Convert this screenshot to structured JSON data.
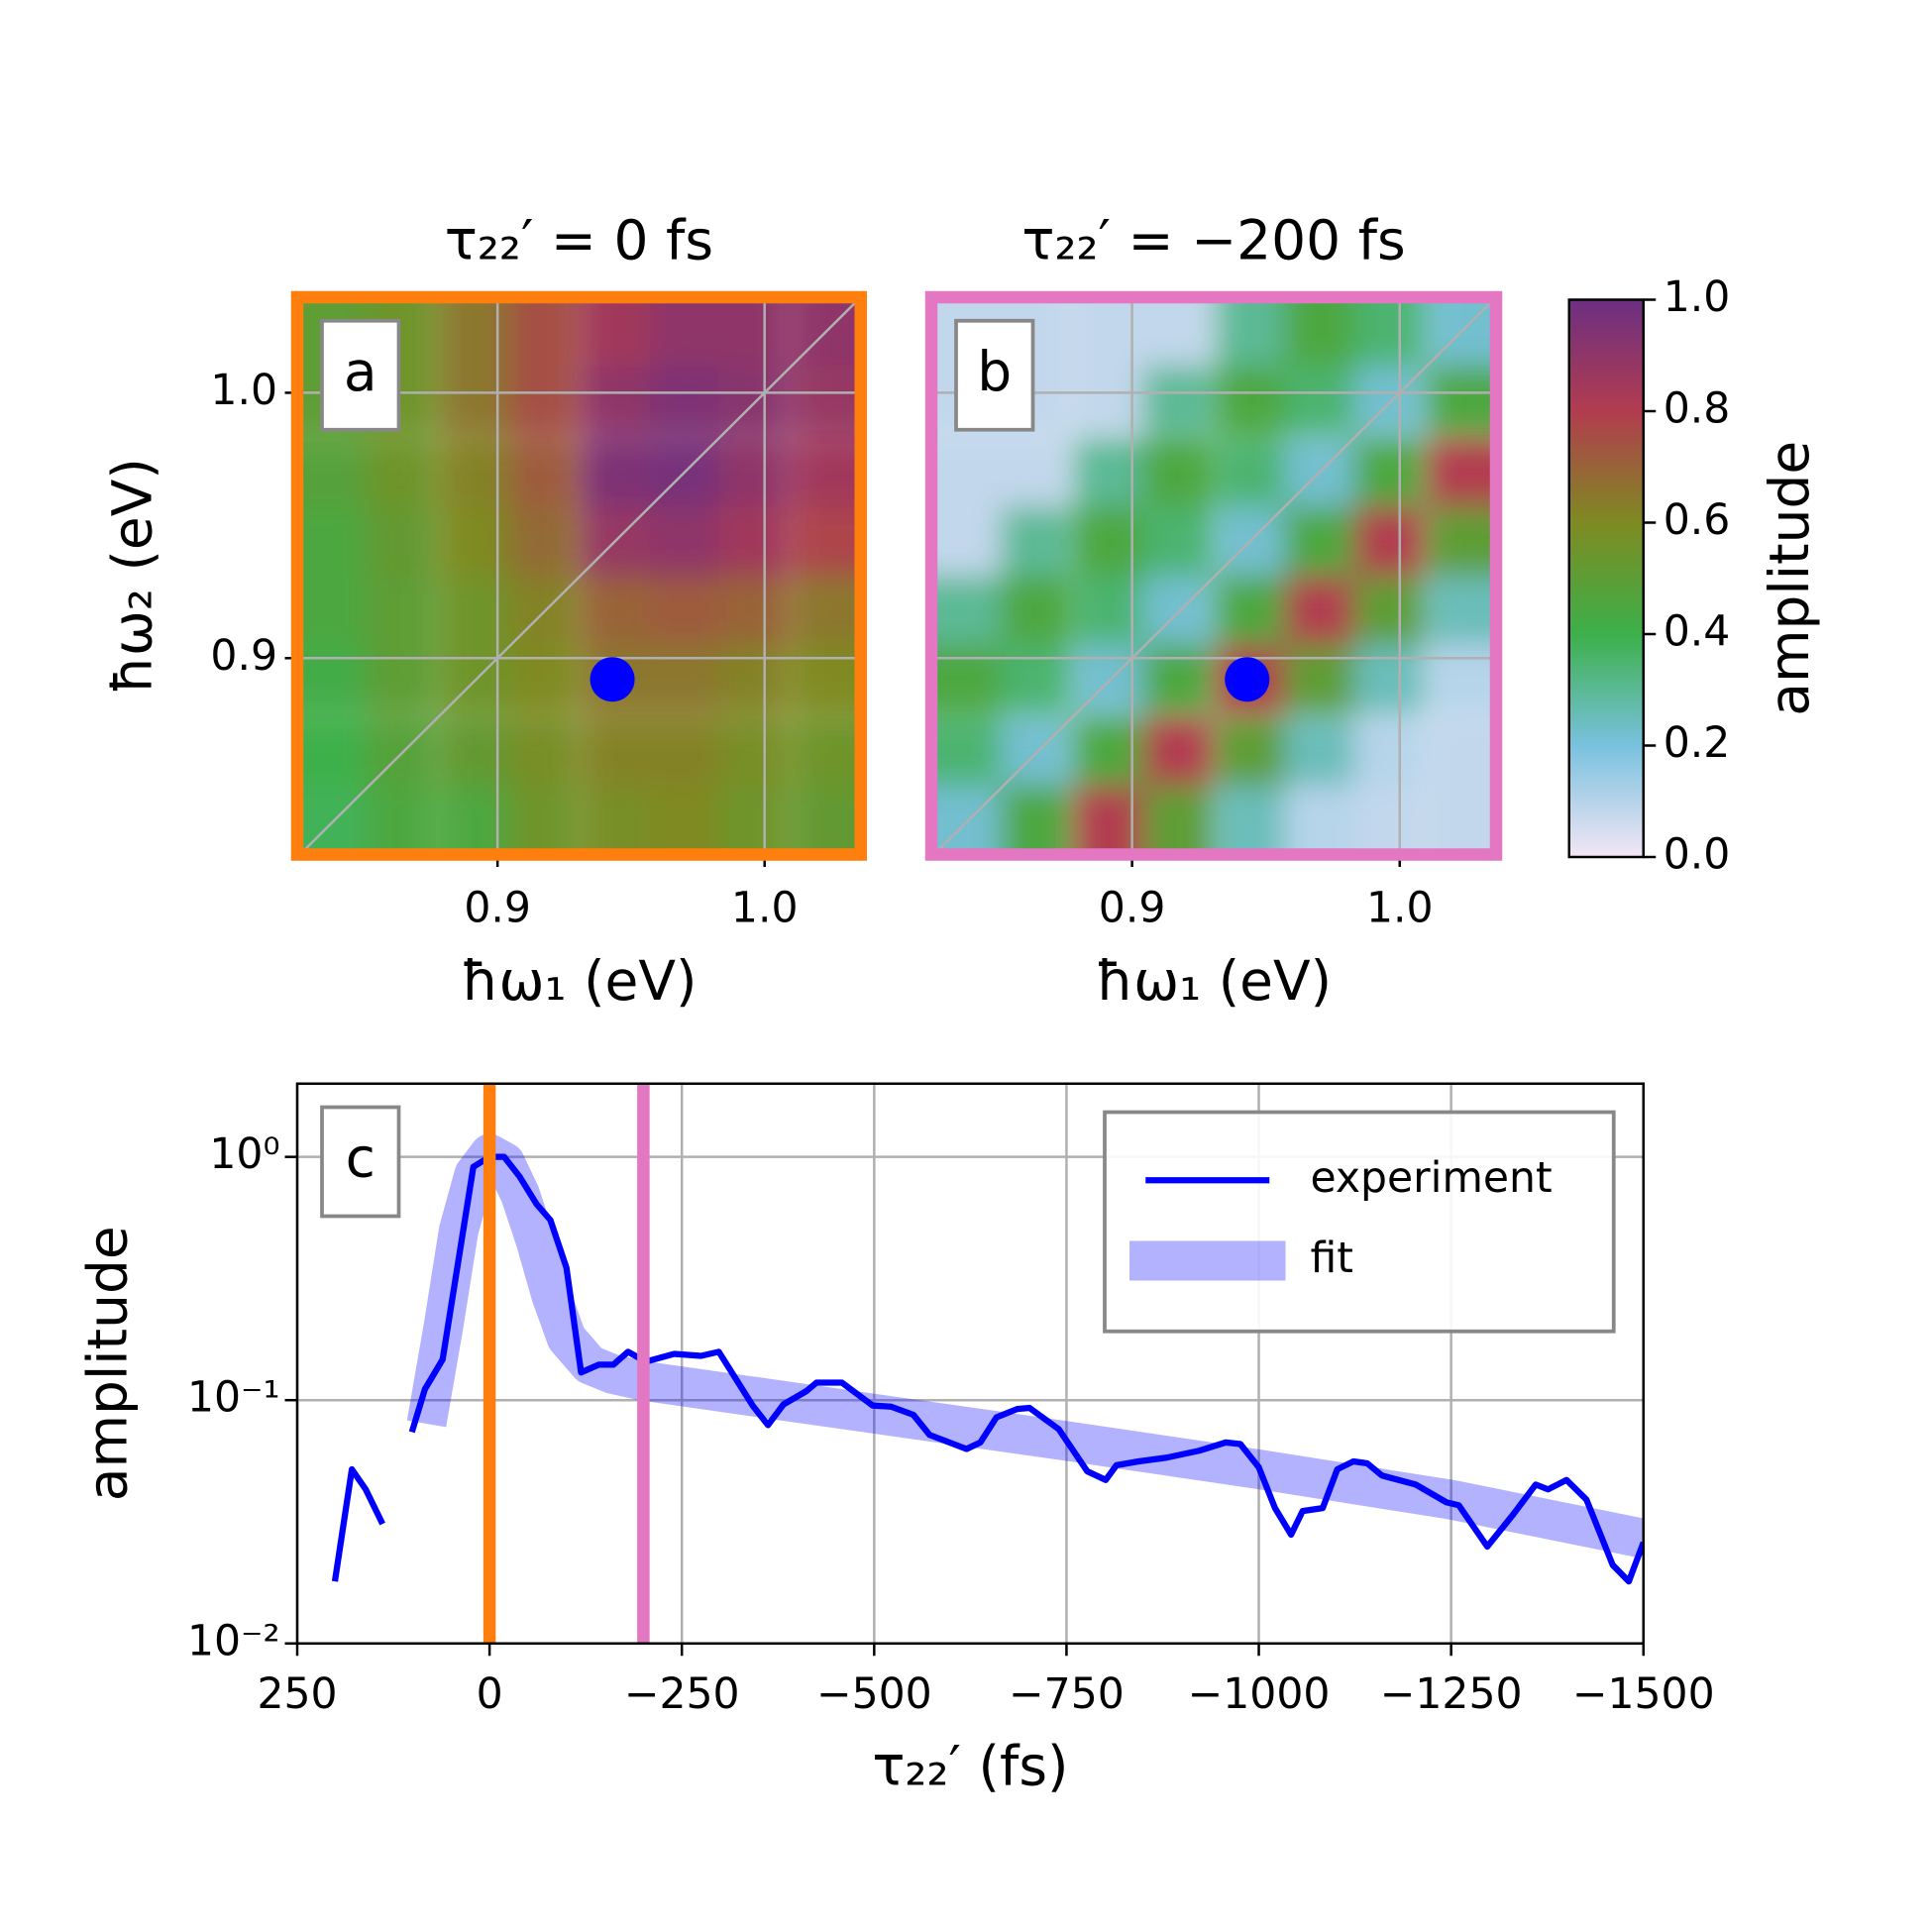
{
  "chart_data": [
    {
      "type": "heatmap",
      "panel_label": "a",
      "title": "τ₂₂′ = 0 fs",
      "xlabel": "ħω₁ (eV)",
      "ylabel": "ħω₂ (eV)",
      "frame_color": "#ff7f0e",
      "x": [
        0.838,
        0.864,
        0.891,
        0.917,
        0.944,
        0.97,
        0.996,
        1.023
      ],
      "y": [
        1.023,
        0.997,
        0.97,
        0.944,
        0.918,
        0.892,
        0.865,
        0.839
      ],
      "z": [
        [
          0.5,
          0.55,
          0.65,
          0.75,
          0.85,
          0.9,
          0.9,
          0.9
        ],
        [
          0.5,
          0.55,
          0.65,
          0.75,
          0.9,
          0.95,
          0.92,
          0.88
        ],
        [
          0.48,
          0.55,
          0.62,
          0.72,
          0.95,
          0.97,
          0.9,
          0.85
        ],
        [
          0.45,
          0.52,
          0.6,
          0.68,
          0.88,
          0.9,
          0.85,
          0.78
        ],
        [
          0.45,
          0.5,
          0.55,
          0.62,
          0.7,
          0.72,
          0.7,
          0.65
        ],
        [
          0.42,
          0.5,
          0.55,
          0.6,
          0.65,
          0.65,
          0.62,
          0.6
        ],
        [
          0.4,
          0.48,
          0.52,
          0.58,
          0.62,
          0.62,
          0.58,
          0.55
        ],
        [
          0.38,
          0.45,
          0.45,
          0.55,
          0.58,
          0.6,
          0.55,
          0.52
        ]
      ],
      "xlim": [
        0.825,
        1.036
      ],
      "ylim": [
        0.826,
        1.036
      ],
      "xticks": [
        0.9,
        {
          "value": 1.0,
          "label": "1.0"
        }
      ],
      "yticks": [
        0.9,
        {
          "value": 1.0,
          "label": "1.0"
        }
      ],
      "grid": true,
      "diagonal": true,
      "marker": {
        "x": 0.943,
        "y": 0.892,
        "color": "#0000ff"
      }
    },
    {
      "type": "heatmap",
      "panel_label": "b",
      "title": "τ₂₂′ = −200 fs",
      "xlabel": "ħω₁ (eV)",
      "frame_color": "#e377c2",
      "x": [
        0.838,
        0.864,
        0.891,
        0.917,
        0.944,
        0.97,
        0.996,
        1.023
      ],
      "y": [
        1.023,
        0.997,
        0.97,
        0.944,
        0.918,
        0.892,
        0.865,
        0.839
      ],
      "z": [
        [
          0.08,
          0.08,
          0.08,
          0.08,
          0.3,
          0.45,
          0.35,
          0.22
        ],
        [
          0.08,
          0.08,
          0.08,
          0.3,
          0.45,
          0.35,
          0.22,
          0.45
        ],
        [
          0.08,
          0.08,
          0.3,
          0.45,
          0.35,
          0.22,
          0.45,
          0.8
        ],
        [
          0.08,
          0.3,
          0.45,
          0.35,
          0.22,
          0.45,
          0.8,
          0.5
        ],
        [
          0.3,
          0.45,
          0.35,
          0.22,
          0.45,
          0.8,
          0.5,
          0.25
        ],
        [
          0.45,
          0.35,
          0.22,
          0.45,
          0.8,
          0.5,
          0.25,
          0.1
        ],
        [
          0.35,
          0.22,
          0.45,
          0.8,
          0.5,
          0.25,
          0.1,
          0.08
        ],
        [
          0.22,
          0.45,
          0.8,
          0.5,
          0.25,
          0.1,
          0.08,
          0.08
        ]
      ],
      "xlim": [
        0.825,
        1.036
      ],
      "ylim": [
        0.826,
        1.036
      ],
      "xticks": [
        0.9,
        {
          "value": 1.0,
          "label": "1.0"
        }
      ],
      "grid": true,
      "diagonal": true,
      "marker": {
        "x": 0.943,
        "y": 0.892,
        "color": "#0000ff"
      }
    },
    {
      "type": "colorbar",
      "label": "amplitude",
      "ylim": [
        0,
        1
      ],
      "yticks": [
        {
          "value": 0,
          "label": "0.0"
        },
        0.2,
        0.4,
        0.6,
        0.8,
        {
          "value": 1,
          "label": "1.0"
        }
      ],
      "colormap": [
        "#f3e6f5",
        "#79c1df",
        "#3cb04a",
        "#7f8a22",
        "#b23c4f",
        "#6c2f82"
      ]
    },
    {
      "type": "line",
      "panel_label": "c",
      "xlabel": "τ₂₂′ (fs)",
      "ylabel": "amplitude",
      "yscale": "log",
      "xlim": [
        250,
        -1500
      ],
      "ylim": [
        0.01,
        2
      ],
      "xticks": [
        250,
        0,
        {
          "value": -250,
          "label": "−250"
        },
        {
          "value": -500,
          "label": "−500"
        },
        {
          "value": -750,
          "label": "−750"
        },
        {
          "value": -1000,
          "label": "−1000"
        },
        {
          "value": -1250,
          "label": "−1250"
        },
        {
          "value": -1500,
          "label": "−1500"
        }
      ],
      "yticks": [
        {
          "value": 0.01,
          "label": "10⁻²"
        },
        {
          "value": 0.1,
          "label": "10⁻¹"
        },
        {
          "value": 1,
          "label": "10⁰"
        }
      ],
      "grid": true,
      "legend": "upper right",
      "vlines": [
        {
          "x": 0,
          "color": "#ff7f0e"
        },
        {
          "x": -200,
          "color": "#e377c2"
        }
      ],
      "series": [
        {
          "name": "experiment",
          "color": "#0000ff",
          "x": [
            201,
            179,
            161,
            139,
            null,
            101,
            84,
            61,
            21,
            0,
            -19,
            -39,
            -61,
            -79,
            -100,
            -119,
            -142,
            -161,
            -180,
            -203,
            -240,
            -275,
            -298,
            -342,
            -362,
            -382,
            -412,
            -425,
            -458,
            -498,
            -522,
            -551,
            -572,
            -620,
            -638,
            -659,
            -686,
            -702,
            -740,
            -777,
            -801,
            -815,
            -844,
            -880,
            -923,
            -957,
            -976,
            -1000,
            -1021,
            -1042,
            -1057,
            -1083,
            -1102,
            -1123,
            -1141,
            -1160,
            -1204,
            -1244,
            -1260,
            -1297,
            -1331,
            -1360,
            -1376,
            -1400,
            -1426,
            -1460,
            -1481,
            -1500
          ],
          "values": [
            0.018,
            0.052,
            0.043,
            0.031,
            null,
            0.074,
            0.111,
            0.147,
            0.91,
            1.0,
            1.0,
            0.83,
            0.64,
            0.55,
            0.35,
            0.13,
            0.14,
            0.14,
            0.158,
            0.144,
            0.155,
            0.152,
            0.158,
            0.095,
            0.079,
            0.096,
            0.109,
            0.118,
            0.118,
            0.095,
            0.094,
            0.087,
            0.072,
            0.063,
            0.067,
            0.085,
            0.092,
            0.093,
            0.076,
            0.051,
            0.047,
            0.054,
            0.056,
            0.058,
            0.062,
            0.067,
            0.066,
            0.053,
            0.036,
            0.028,
            0.035,
            0.036,
            0.052,
            0.056,
            0.055,
            0.049,
            0.045,
            0.038,
            0.037,
            0.025,
            0.034,
            0.045,
            0.043,
            0.047,
            0.039,
            0.021,
            0.018,
            0.026
          ]
        },
        {
          "name": "fit",
          "color": "#0000ff",
          "x": [
            82,
            60,
            40,
            20,
            0,
            -20,
            -40,
            -60,
            -80,
            -100,
            -130,
            -160,
            -200,
            -500,
            -750,
            -1000,
            -1250,
            -1500
          ],
          "values": [
            0.08,
            0.2,
            0.5,
            0.85,
            1.03,
            0.95,
            0.7,
            0.45,
            0.27,
            0.18,
            0.14,
            0.128,
            0.12,
            0.088,
            0.068,
            0.052,
            0.039,
            0.027
          ]
        }
      ]
    }
  ]
}
